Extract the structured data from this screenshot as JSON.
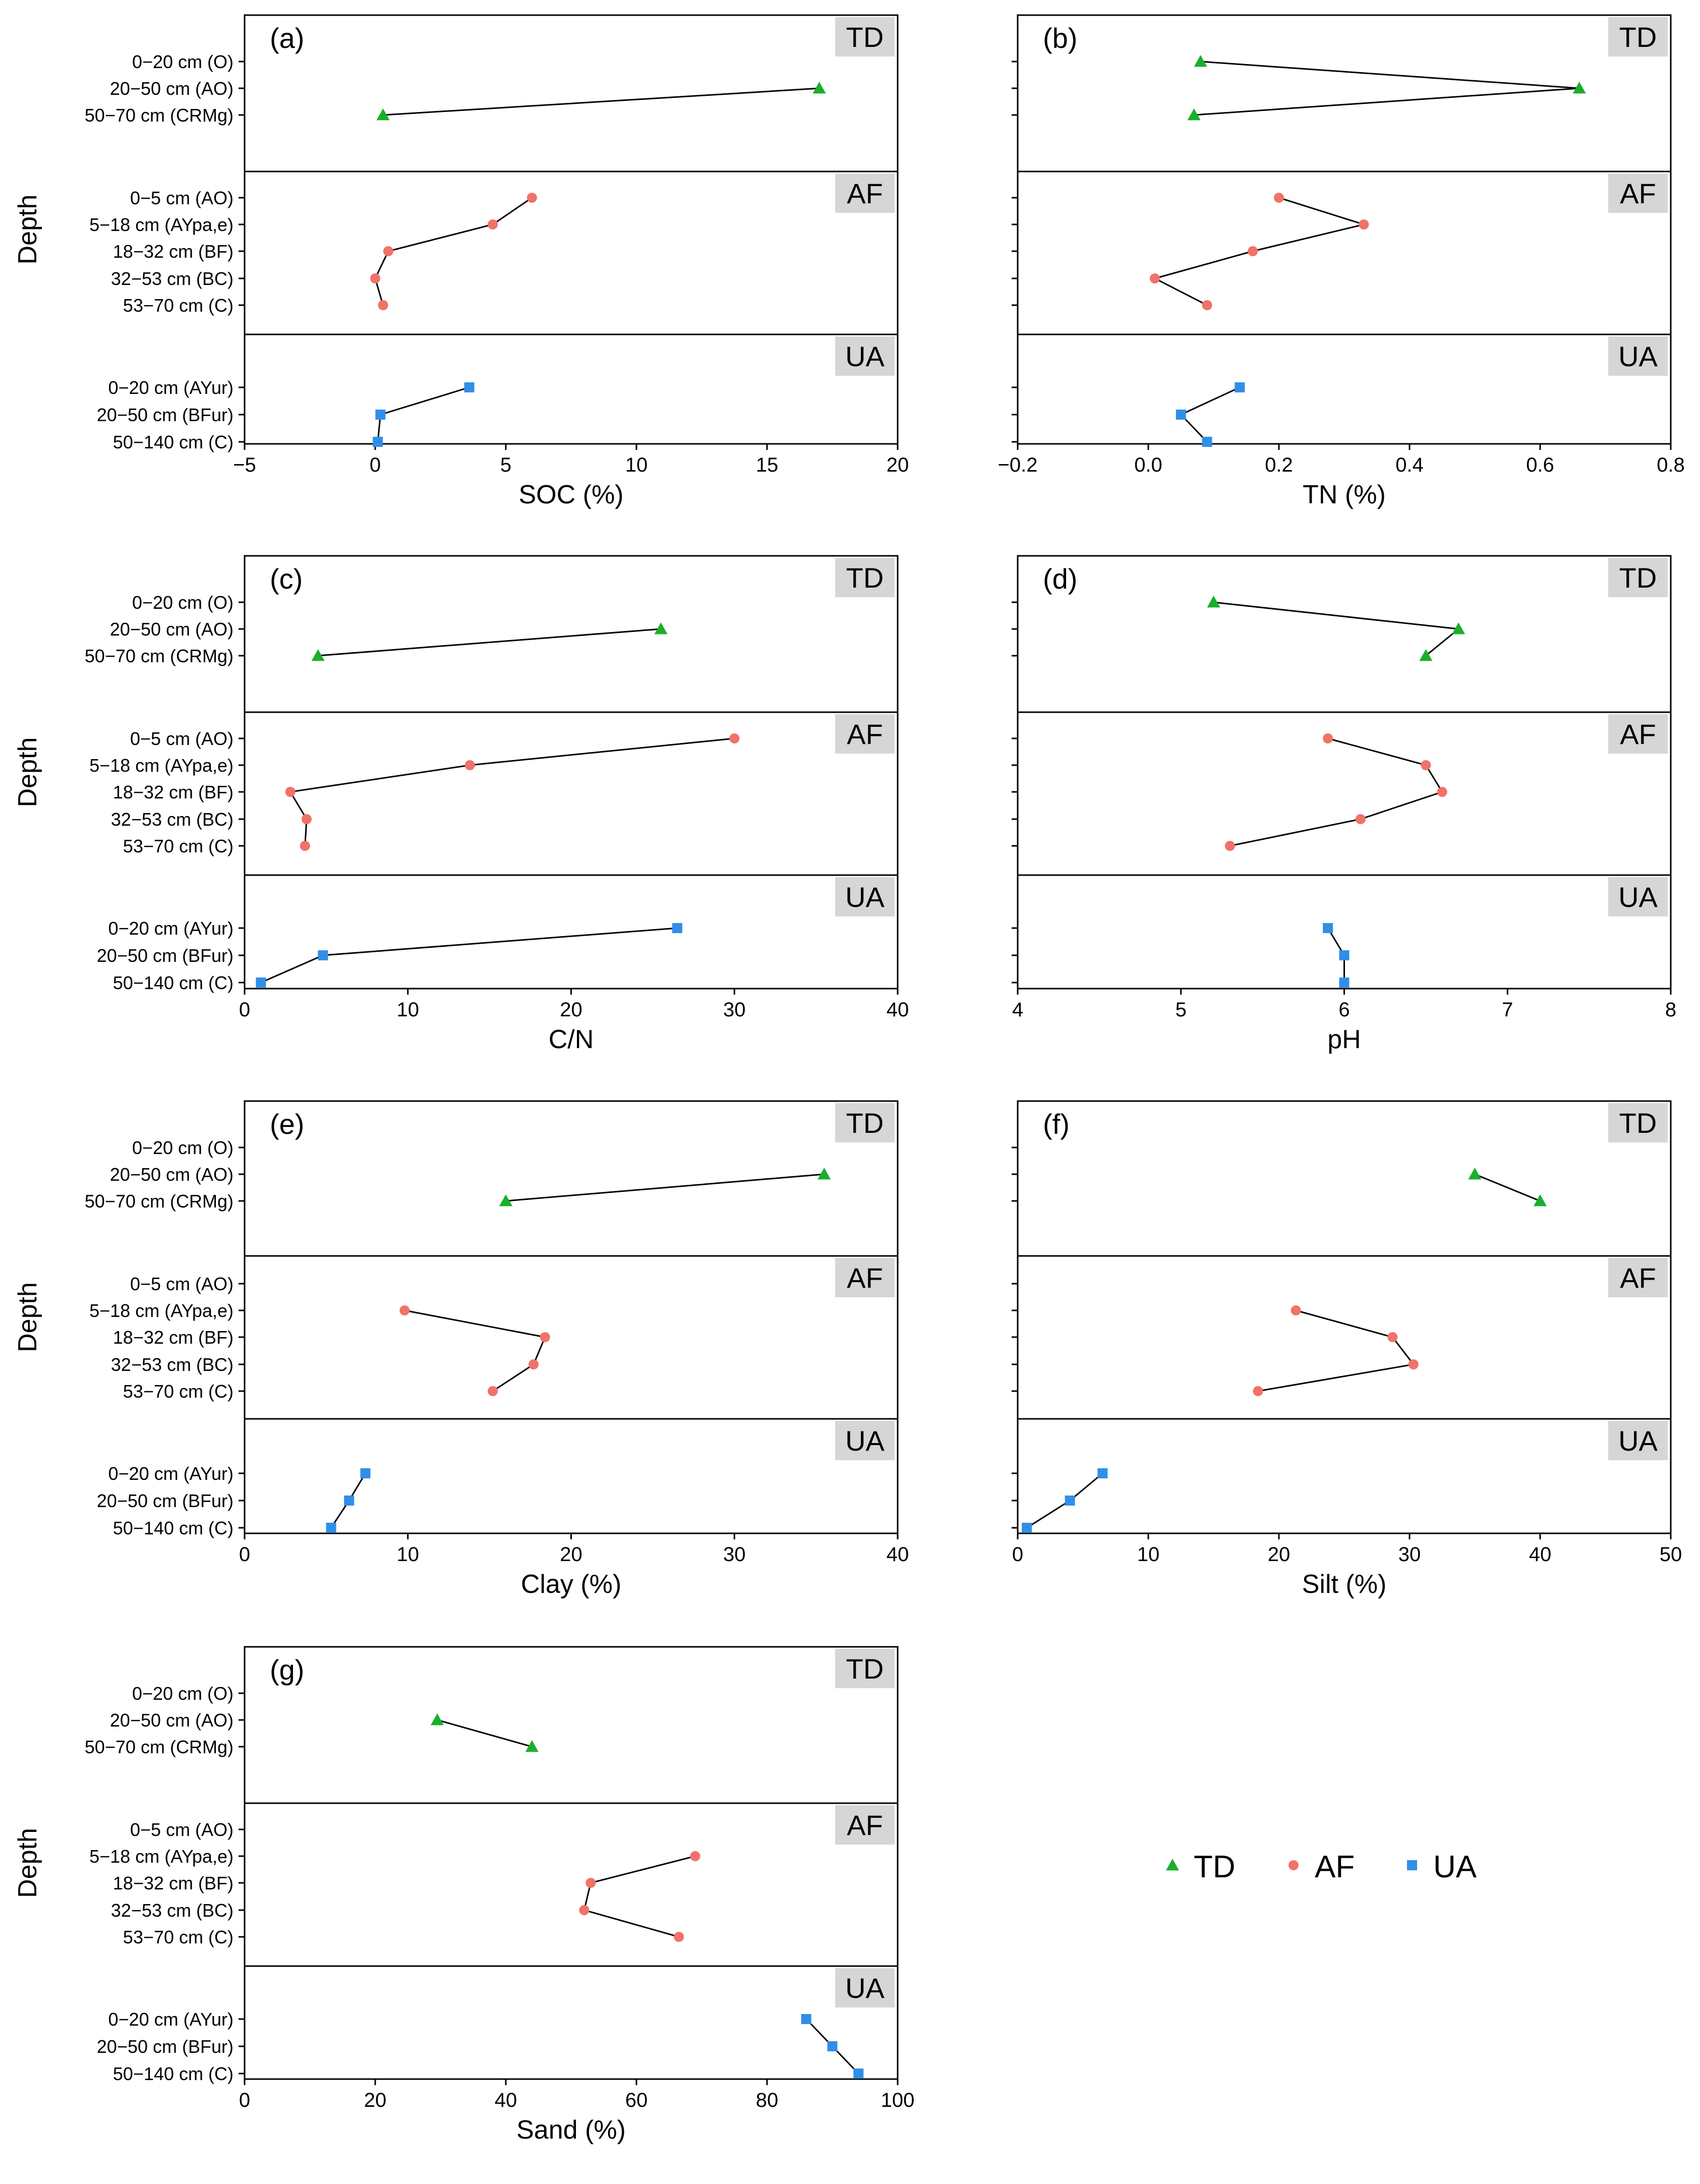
{
  "colors": {
    "TD": "#1aaf2b",
    "AF": "#f07268",
    "UA": "#2f8fe8",
    "strip_bg": "#d6d6d6",
    "line": "#000000"
  },
  "y_axis_title": "Depth",
  "legend": [
    {
      "key": "TD",
      "label": "TD",
      "marker": "triangle"
    },
    {
      "key": "AF",
      "label": "AF",
      "marker": "circle"
    },
    {
      "key": "UA",
      "label": "UA",
      "marker": "square"
    }
  ],
  "depth_labels": {
    "TD": [
      "0−20 cm (O)",
      "20−50 cm (AO)",
      "50−70 cm (CRMg)"
    ],
    "AF": [
      "0−5 cm (AO)",
      "5−18 cm (AYpa,e)",
      "18−32 cm (BF)",
      "32−53 cm (BC)",
      "53−70 cm (C)"
    ],
    "UA": [
      "0−20 cm (AYur)",
      "20−50 cm (BFur)",
      "50−140 cm (C)"
    ]
  },
  "chart_data": [
    {
      "type": "line",
      "panel": "(a)",
      "xlabel": "SOC (%)",
      "ylabel": "Depth",
      "xlim": [
        -5,
        20
      ],
      "ticks": [
        -5,
        0,
        5,
        10,
        15,
        20
      ],
      "tick_labels": [
        "−5",
        "0",
        "5",
        "10",
        "15",
        "20"
      ],
      "show_y_labels": true,
      "series": [
        {
          "name": "TD",
          "values": [
            null,
            17.0,
            0.3
          ]
        },
        {
          "name": "AF",
          "values": [
            6.0,
            4.5,
            0.5,
            0.0,
            0.3
          ]
        },
        {
          "name": "UA",
          "values": [
            3.6,
            0.2,
            0.1
          ]
        }
      ]
    },
    {
      "type": "line",
      "panel": "(b)",
      "xlabel": "TN (%)",
      "ylabel": "Depth",
      "xlim": [
        -0.2,
        0.8
      ],
      "ticks": [
        -0.2,
        0.0,
        0.2,
        0.4,
        0.6,
        0.8
      ],
      "tick_labels": [
        "−0.2",
        "0.0",
        "0.2",
        "0.4",
        "0.6",
        "0.8"
      ],
      "show_y_labels": false,
      "series": [
        {
          "name": "TD",
          "values": [
            0.08,
            0.66,
            0.07
          ]
        },
        {
          "name": "AF",
          "values": [
            0.2,
            0.33,
            0.16,
            0.01,
            0.09
          ]
        },
        {
          "name": "UA",
          "values": [
            0.14,
            0.05,
            0.09
          ]
        }
      ]
    },
    {
      "type": "line",
      "panel": "(c)",
      "xlabel": "C/N",
      "ylabel": "Depth",
      "xlim": [
        0,
        40
      ],
      "ticks": [
        0,
        10,
        20,
        30,
        40
      ],
      "tick_labels": [
        "0",
        "10",
        "20",
        "30",
        "40"
      ],
      "show_y_labels": true,
      "series": [
        {
          "name": "TD",
          "values": [
            null,
            25.5,
            4.5
          ]
        },
        {
          "name": "AF",
          "values": [
            30.0,
            13.8,
            2.8,
            3.8,
            3.7
          ]
        },
        {
          "name": "UA",
          "values": [
            26.5,
            4.8,
            1.0
          ]
        }
      ]
    },
    {
      "type": "line",
      "panel": "(d)",
      "xlabel": "pH",
      "ylabel": "Depth",
      "xlim": [
        4,
        8
      ],
      "ticks": [
        4,
        5,
        6,
        7,
        8
      ],
      "tick_labels": [
        "4",
        "5",
        "6",
        "7",
        "8"
      ],
      "show_y_labels": false,
      "series": [
        {
          "name": "TD",
          "values": [
            5.2,
            6.7,
            6.5
          ]
        },
        {
          "name": "AF",
          "values": [
            5.9,
            6.5,
            6.6,
            6.1,
            5.3
          ]
        },
        {
          "name": "UA",
          "values": [
            5.9,
            6.0,
            6.0
          ]
        }
      ]
    },
    {
      "type": "line",
      "panel": "(e)",
      "xlabel": "Clay (%)",
      "ylabel": "Depth",
      "xlim": [
        0,
        40
      ],
      "ticks": [
        0,
        10,
        20,
        30,
        40
      ],
      "tick_labels": [
        "0",
        "10",
        "20",
        "30",
        "40"
      ],
      "show_y_labels": true,
      "series": [
        {
          "name": "TD",
          "values": [
            null,
            35.5,
            16.0
          ]
        },
        {
          "name": "AF",
          "values": [
            null,
            9.8,
            18.4,
            17.7,
            15.2
          ]
        },
        {
          "name": "UA",
          "values": [
            7.4,
            6.4,
            5.3
          ]
        }
      ]
    },
    {
      "type": "line",
      "panel": "(f)",
      "xlabel": "Silt (%)",
      "ylabel": "Depth",
      "xlim": [
        0,
        50
      ],
      "ticks": [
        0,
        10,
        20,
        30,
        40,
        50
      ],
      "tick_labels": [
        "0",
        "10",
        "20",
        "30",
        "40",
        "50"
      ],
      "show_y_labels": false,
      "series": [
        {
          "name": "TD",
          "values": [
            null,
            35.0,
            40.0
          ]
        },
        {
          "name": "AF",
          "values": [
            null,
            21.3,
            28.7,
            30.3,
            18.4
          ]
        },
        {
          "name": "UA",
          "values": [
            6.5,
            4.0,
            0.7
          ]
        }
      ]
    },
    {
      "type": "line",
      "panel": "(g)",
      "xlabel": "Sand (%)",
      "ylabel": "Depth",
      "xlim": [
        0,
        100
      ],
      "ticks": [
        0,
        20,
        40,
        60,
        80,
        100
      ],
      "tick_labels": [
        "0",
        "20",
        "40",
        "60",
        "80",
        "100"
      ],
      "show_y_labels": true,
      "series": [
        {
          "name": "TD",
          "values": [
            null,
            29.5,
            44.0
          ]
        },
        {
          "name": "AF",
          "values": [
            null,
            69.0,
            53.0,
            52.0,
            66.5
          ]
        },
        {
          "name": "UA",
          "values": [
            86.0,
            90.0,
            94.0
          ]
        }
      ]
    }
  ]
}
